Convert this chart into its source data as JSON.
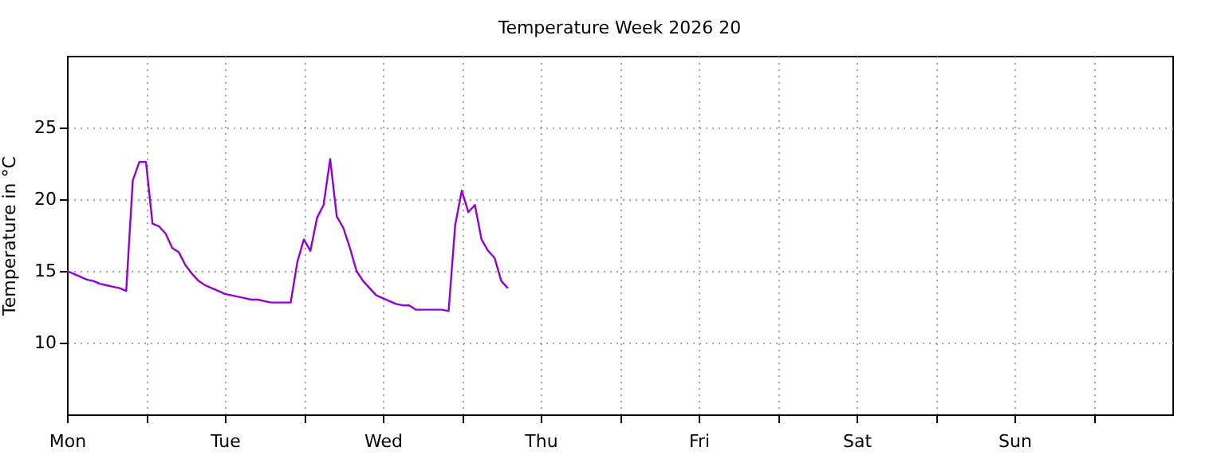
{
  "chart_data": {
    "type": "line",
    "title": "Temperature Week 2026 20",
    "ylabel": "Temperature in °C",
    "categories": [
      "Mon",
      null,
      null,
      null,
      null,
      null,
      null,
      null,
      null,
      null,
      null,
      null,
      null,
      null,
      null,
      null,
      null,
      null,
      null,
      null,
      null,
      null,
      null,
      null,
      "Tue",
      null,
      null,
      null,
      null,
      null,
      null,
      null,
      null,
      null,
      null,
      null,
      null,
      null,
      null,
      null,
      null,
      null,
      null,
      null,
      null,
      null,
      null,
      null,
      "Wed",
      null,
      null,
      null,
      null,
      null,
      null,
      null,
      null,
      null,
      null,
      null,
      null,
      null,
      null,
      null,
      null,
      null,
      null,
      null,
      null,
      null,
      null,
      null,
      "Thu",
      null,
      null,
      null,
      null,
      null,
      null,
      null,
      null,
      null,
      null,
      null,
      null,
      null,
      null,
      null,
      null,
      null,
      null,
      null,
      null,
      null,
      null,
      null,
      "Fri",
      null,
      null,
      null,
      null,
      null,
      null,
      null,
      null,
      null,
      null,
      null,
      null,
      null,
      null,
      null,
      null,
      null,
      null,
      null,
      null,
      null,
      null,
      null,
      "Sat",
      null,
      null,
      null,
      null,
      null,
      null,
      null,
      null,
      null,
      null,
      null,
      null,
      null,
      null,
      null,
      null,
      null,
      null,
      null,
      null,
      null,
      null,
      null,
      "Sun",
      null,
      null,
      null,
      null,
      null,
      null,
      null,
      null,
      null,
      null,
      null,
      null,
      null,
      null,
      null,
      null,
      null,
      null,
      null,
      null,
      null,
      null,
      null,
      null
    ],
    "ylim": [
      5,
      30
    ],
    "yticks": [
      10,
      15,
      20,
      25
    ],
    "grid": true,
    "line_style": "solid",
    "marker": "none",
    "series": [
      {
        "color": "#9400d3",
        "values": [
          15.0,
          14.8,
          14.6,
          14.4,
          14.3,
          14.1,
          14.0,
          13.9,
          13.8,
          13.6,
          21.3,
          22.6,
          22.6,
          18.3,
          18.1,
          17.6,
          16.6,
          16.3,
          15.4,
          14.8,
          14.3,
          14.0,
          13.8,
          13.6,
          13.4,
          13.3,
          13.2,
          13.1,
          13.0,
          13.0,
          12.9,
          12.8,
          12.8,
          12.8,
          12.8,
          15.6,
          17.2,
          16.4,
          18.7,
          19.6,
          22.8,
          18.8,
          18.0,
          16.6,
          15.0,
          14.3,
          13.8,
          13.3,
          13.1,
          12.9,
          12.7,
          12.6,
          12.6,
          12.3,
          12.3,
          12.3,
          12.3,
          12.3,
          12.2,
          18.2,
          20.6,
          19.1,
          19.6,
          17.2,
          16.4,
          15.9,
          14.3,
          13.8,
          null,
          null,
          null,
          null,
          null,
          null,
          null,
          null,
          null,
          null,
          null,
          null,
          null,
          null,
          null,
          null,
          null,
          null,
          null,
          null,
          null,
          null,
          null,
          null,
          null,
          null,
          null,
          null,
          null,
          null,
          null,
          null,
          null,
          null,
          null,
          null,
          null,
          null,
          null,
          null,
          null,
          null,
          null,
          null,
          null,
          null,
          null,
          null,
          null,
          null,
          null,
          null,
          null,
          null,
          null,
          null,
          null,
          null,
          null,
          null,
          null,
          null,
          null,
          null,
          null,
          null,
          null,
          null,
          null,
          null,
          null,
          null,
          null,
          null,
          null,
          null,
          null,
          null,
          null,
          null,
          null,
          null,
          null,
          null,
          null,
          null,
          null,
          null,
          null,
          null,
          null,
          null,
          null,
          null,
          null,
          null,
          null,
          null,
          null,
          null,
          null
        ]
      }
    ]
  }
}
